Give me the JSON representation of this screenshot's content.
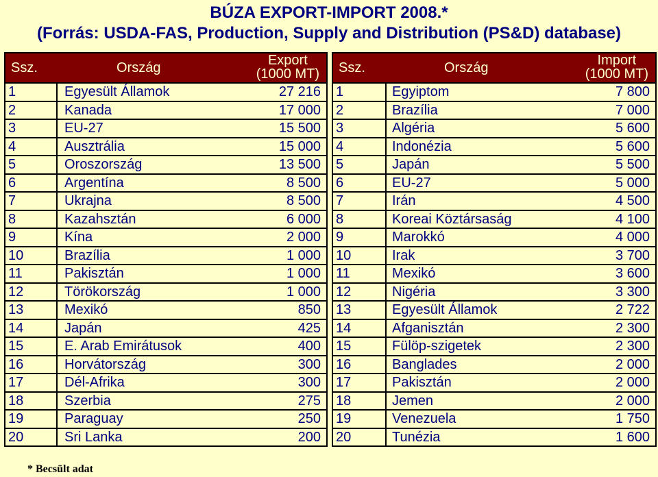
{
  "title_line1": "BÚZA EXPORT-IMPORT 2008.*",
  "title_line2": "(Forrás: USDA-FAS, Production, Supply and Distribution (PS&D) database)",
  "export": {
    "headers": {
      "num": "Ssz.",
      "country": "Ország",
      "value_line1": "Export",
      "value_line2": "(1000 MT)"
    },
    "rows": [
      {
        "num": "1",
        "country": "Egyesült Államok",
        "value": "27 216"
      },
      {
        "num": "2",
        "country": "Kanada",
        "value": "17 000"
      },
      {
        "num": "3",
        "country": "EU-27",
        "value": "15 500"
      },
      {
        "num": "4",
        "country": "Ausztrália",
        "value": "15 000"
      },
      {
        "num": "5",
        "country": "Oroszország",
        "value": "13 500"
      },
      {
        "num": "6",
        "country": "Argentína",
        "value": "8 500"
      },
      {
        "num": "7",
        "country": "Ukrajna",
        "value": "8 500"
      },
      {
        "num": "8",
        "country": "Kazahsztán",
        "value": "6 000"
      },
      {
        "num": "9",
        "country": "Kína",
        "value": "2 000"
      },
      {
        "num": "10",
        "country": "Brazília",
        "value": "1 000"
      },
      {
        "num": "11",
        "country": "Pakisztán",
        "value": "1 000"
      },
      {
        "num": "12",
        "country": "Törökország",
        "value": "1 000"
      },
      {
        "num": "13",
        "country": "Mexikó",
        "value": "850"
      },
      {
        "num": "14",
        "country": "Japán",
        "value": "425"
      },
      {
        "num": "15",
        "country": "E. Arab Emirátusok",
        "value": "400"
      },
      {
        "num": "16",
        "country": "Horvátország",
        "value": "300"
      },
      {
        "num": "17",
        "country": "Dél-Afrika",
        "value": "300"
      },
      {
        "num": "18",
        "country": "Szerbia",
        "value": "275"
      },
      {
        "num": "19",
        "country": "Paraguay",
        "value": "250"
      },
      {
        "num": "20",
        "country": "Sri Lanka",
        "value": "200"
      }
    ]
  },
  "import": {
    "headers": {
      "num": "Ssz.",
      "country": "Ország",
      "value_line1": "Import",
      "value_line2": "(1000 MT)"
    },
    "rows": [
      {
        "num": "1",
        "country": "Egyiptom",
        "value": "7 800"
      },
      {
        "num": "2",
        "country": "Brazília",
        "value": "7 000"
      },
      {
        "num": "3",
        "country": "Algéria",
        "value": "5 600"
      },
      {
        "num": "4",
        "country": "Indonézia",
        "value": "5 600"
      },
      {
        "num": "5",
        "country": "Japán",
        "value": "5 500"
      },
      {
        "num": "6",
        "country": "EU-27",
        "value": "5 000"
      },
      {
        "num": "7",
        "country": "Irán",
        "value": "4 500"
      },
      {
        "num": "8",
        "country": "Koreai Köztársaság",
        "value": "4 100"
      },
      {
        "num": "9",
        "country": "Marokkó",
        "value": "4 000"
      },
      {
        "num": "10",
        "country": "Irak",
        "value": "3 700"
      },
      {
        "num": "11",
        "country": "Mexikó",
        "value": "3 600"
      },
      {
        "num": "12",
        "country": "Nigéria",
        "value": "3 300"
      },
      {
        "num": "13",
        "country": "Egyesült Államok",
        "value": "2 722"
      },
      {
        "num": "14",
        "country": "Afganisztán",
        "value": "2 300"
      },
      {
        "num": "15",
        "country": "Fülöp-szigetek",
        "value": "2 300"
      },
      {
        "num": "16",
        "country": "Banglades",
        "value": "2 000"
      },
      {
        "num": "17",
        "country": "Pakisztán",
        "value": "2 000"
      },
      {
        "num": "18",
        "country": "Jemen",
        "value": "2 000"
      },
      {
        "num": "19",
        "country": "Venezuela",
        "value": "1 750"
      },
      {
        "num": "20",
        "country": "Tunézia",
        "value": "1 600"
      }
    ]
  },
  "footnote": "* Becsült adat"
}
